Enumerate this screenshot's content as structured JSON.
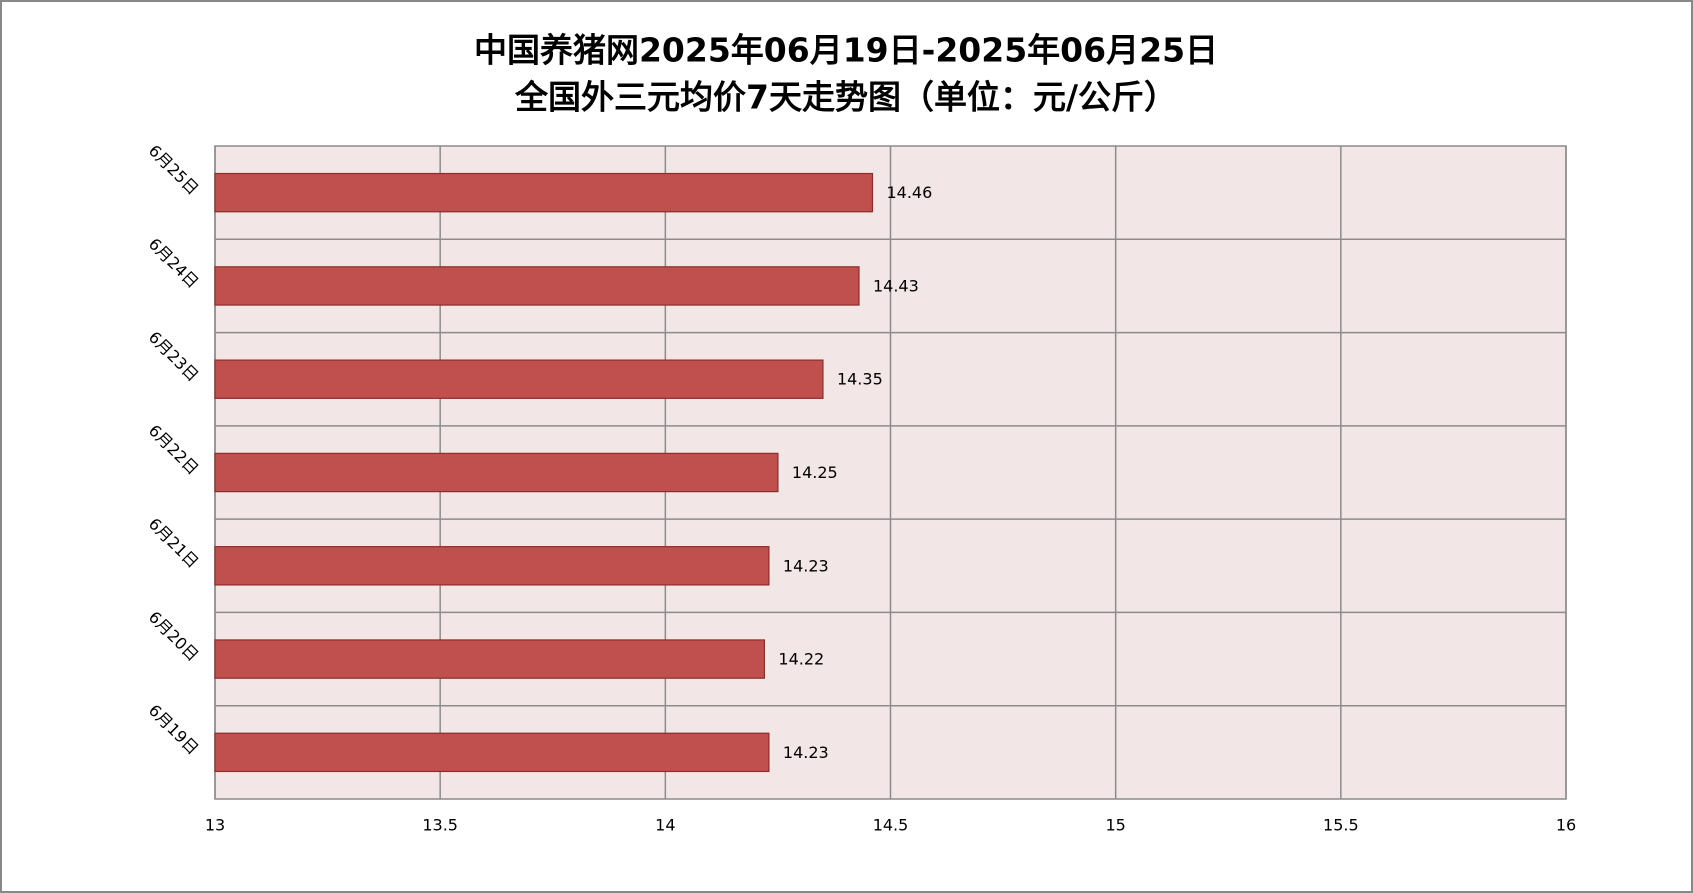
{
  "chart_data": {
    "type": "barh",
    "title": "中国养猪网2025年06月19日-2025年06月25日",
    "subtitle": "全国外三元均价7天走势图（单位：元/公斤）",
    "categories": [
      "6月19日",
      "6月20日",
      "6月21日",
      "6月22日",
      "6月23日",
      "6月24日",
      "6月25日"
    ],
    "values": [
      14.23,
      14.22,
      14.23,
      14.25,
      14.35,
      14.43,
      14.46
    ],
    "color": "#c0504d",
    "xlim": [
      13,
      16
    ],
    "xticks": [
      13,
      13.5,
      14,
      14.5,
      15,
      15.5,
      16
    ],
    "grid": true
  }
}
